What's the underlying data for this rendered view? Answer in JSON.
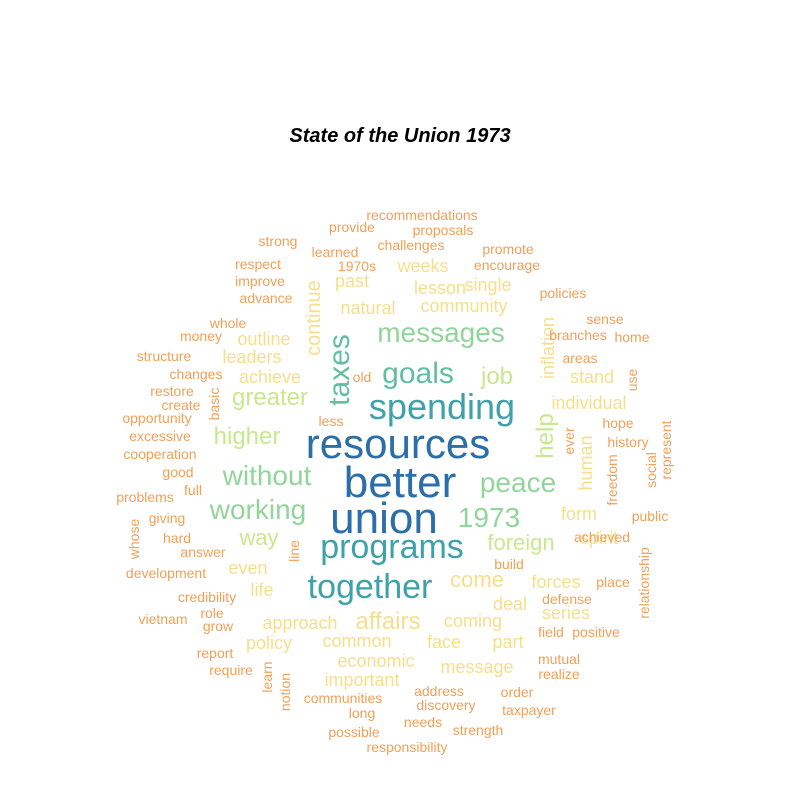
{
  "title": "State of the Union 1973",
  "palette": {
    "tier1": "#2b6ea8",
    "tier2": "#3ea2a8",
    "tier3": "#62bf9e",
    "tier4": "#92d59b",
    "tier5": "#c8e88d",
    "tier6": "#f6df8b",
    "tier7": "#f5c781",
    "tier8": "#f1a057"
  },
  "words": [
    {
      "text": "resources",
      "tier": "tier1"
    },
    {
      "text": "better",
      "tier": "tier1"
    },
    {
      "text": "union",
      "tier": "tier1"
    },
    {
      "text": "spending",
      "tier": "tier2"
    },
    {
      "text": "programs",
      "tier": "tier2"
    },
    {
      "text": "together",
      "tier": "tier2"
    },
    {
      "text": "taxes",
      "tier": "tier3"
    },
    {
      "text": "goals",
      "tier": "tier3"
    },
    {
      "text": "messages",
      "tier": "tier4"
    },
    {
      "text": "without",
      "tier": "tier4"
    },
    {
      "text": "working",
      "tier": "tier4"
    },
    {
      "text": "peace",
      "tier": "tier4"
    },
    {
      "text": "1973",
      "tier": "tier4"
    },
    {
      "text": "greater",
      "tier": "tier5"
    },
    {
      "text": "higher",
      "tier": "tier5"
    },
    {
      "text": "help",
      "tier": "tier5"
    },
    {
      "text": "job",
      "tier": "tier5"
    },
    {
      "text": "foreign",
      "tier": "tier5"
    },
    {
      "text": "way",
      "tier": "tier5"
    },
    {
      "text": "come",
      "tier": "tier6"
    },
    {
      "text": "affairs",
      "tier": "tier6"
    },
    {
      "text": "continue",
      "tier": "tier6"
    },
    {
      "text": "community",
      "tier": "tier6"
    },
    {
      "text": "natural",
      "tier": "tier6"
    },
    {
      "text": "single",
      "tier": "tier6"
    },
    {
      "text": "lesson",
      "tier": "tier6"
    },
    {
      "text": "past",
      "tier": "tier6"
    },
    {
      "text": "weeks",
      "tier": "tier6"
    },
    {
      "text": "outline",
      "tier": "tier6"
    },
    {
      "text": "leaders",
      "tier": "tier6"
    },
    {
      "text": "achieve",
      "tier": "tier6"
    },
    {
      "text": "inflation",
      "tier": "tier6"
    },
    {
      "text": "stand",
      "tier": "tier6"
    },
    {
      "text": "individual",
      "tier": "tier6"
    },
    {
      "text": "human",
      "tier": "tier6"
    },
    {
      "text": "form",
      "tier": "tier6"
    },
    {
      "text": "spirit",
      "tier": "tier6"
    },
    {
      "text": "even",
      "tier": "tier6"
    },
    {
      "text": "life",
      "tier": "tier6"
    },
    {
      "text": "forces",
      "tier": "tier6"
    },
    {
      "text": "deal",
      "tier": "tier6"
    },
    {
      "text": "series",
      "tier": "tier6"
    },
    {
      "text": "approach",
      "tier": "tier6"
    },
    {
      "text": "coming",
      "tier": "tier6"
    },
    {
      "text": "policy",
      "tier": "tier6"
    },
    {
      "text": "common",
      "tier": "tier6"
    },
    {
      "text": "face",
      "tier": "tier6"
    },
    {
      "text": "part",
      "tier": "tier6"
    },
    {
      "text": "economic",
      "tier": "tier6"
    },
    {
      "text": "message",
      "tier": "tier6"
    },
    {
      "text": "important",
      "tier": "tier6"
    },
    {
      "text": "recommendations",
      "tier": "tier8"
    },
    {
      "text": "provide",
      "tier": "tier8"
    },
    {
      "text": "proposals",
      "tier": "tier8"
    },
    {
      "text": "strong",
      "tier": "tier8"
    },
    {
      "text": "learned",
      "tier": "tier8"
    },
    {
      "text": "challenges",
      "tier": "tier8"
    },
    {
      "text": "promote",
      "tier": "tier8"
    },
    {
      "text": "respect",
      "tier": "tier8"
    },
    {
      "text": "1970s",
      "tier": "tier8"
    },
    {
      "text": "encourage",
      "tier": "tier8"
    },
    {
      "text": "improve",
      "tier": "tier8"
    },
    {
      "text": "policies",
      "tier": "tier8"
    },
    {
      "text": "advance",
      "tier": "tier8"
    },
    {
      "text": "sense",
      "tier": "tier8"
    },
    {
      "text": "branches",
      "tier": "tier8"
    },
    {
      "text": "home",
      "tier": "tier8"
    },
    {
      "text": "whole",
      "tier": "tier8"
    },
    {
      "text": "money",
      "tier": "tier8"
    },
    {
      "text": "structure",
      "tier": "tier8"
    },
    {
      "text": "areas",
      "tier": "tier8"
    },
    {
      "text": "changes",
      "tier": "tier8"
    },
    {
      "text": "old",
      "tier": "tier8"
    },
    {
      "text": "use",
      "tier": "tier8"
    },
    {
      "text": "restore",
      "tier": "tier8"
    },
    {
      "text": "create",
      "tier": "tier8"
    },
    {
      "text": "basic",
      "tier": "tier8"
    },
    {
      "text": "opportunity",
      "tier": "tier8"
    },
    {
      "text": "less",
      "tier": "tier8"
    },
    {
      "text": "hope",
      "tier": "tier8"
    },
    {
      "text": "represent",
      "tier": "tier8"
    },
    {
      "text": "excessive",
      "tier": "tier8"
    },
    {
      "text": "ever",
      "tier": "tier8"
    },
    {
      "text": "history",
      "tier": "tier8"
    },
    {
      "text": "cooperation",
      "tier": "tier8"
    },
    {
      "text": "good",
      "tier": "tier8"
    },
    {
      "text": "freedom",
      "tier": "tier8"
    },
    {
      "text": "social",
      "tier": "tier8"
    },
    {
      "text": "full",
      "tier": "tier8"
    },
    {
      "text": "problems",
      "tier": "tier8"
    },
    {
      "text": "giving",
      "tier": "tier8"
    },
    {
      "text": "public",
      "tier": "tier8"
    },
    {
      "text": "whose",
      "tier": "tier8"
    },
    {
      "text": "hard",
      "tier": "tier8"
    },
    {
      "text": "answer",
      "tier": "tier8"
    },
    {
      "text": "line",
      "tier": "tier8"
    },
    {
      "text": "achieved",
      "tier": "tier8"
    },
    {
      "text": "relationship",
      "tier": "tier8"
    },
    {
      "text": "development",
      "tier": "tier8"
    },
    {
      "text": "build",
      "tier": "tier8"
    },
    {
      "text": "place",
      "tier": "tier8"
    },
    {
      "text": "credibility",
      "tier": "tier8"
    },
    {
      "text": "defense",
      "tier": "tier8"
    },
    {
      "text": "vietnam",
      "tier": "tier8"
    },
    {
      "text": "role",
      "tier": "tier8"
    },
    {
      "text": "grow",
      "tier": "tier8"
    },
    {
      "text": "field",
      "tier": "tier8"
    },
    {
      "text": "positive",
      "tier": "tier8"
    },
    {
      "text": "report",
      "tier": "tier8"
    },
    {
      "text": "mutual",
      "tier": "tier8"
    },
    {
      "text": "require",
      "tier": "tier8"
    },
    {
      "text": "learn",
      "tier": "tier8"
    },
    {
      "text": "realize",
      "tier": "tier8"
    },
    {
      "text": "notion",
      "tier": "tier8"
    },
    {
      "text": "address",
      "tier": "tier8"
    },
    {
      "text": "order",
      "tier": "tier8"
    },
    {
      "text": "communities",
      "tier": "tier8"
    },
    {
      "text": "discovery",
      "tier": "tier8"
    },
    {
      "text": "long",
      "tier": "tier8"
    },
    {
      "text": "taxpayer",
      "tier": "tier8"
    },
    {
      "text": "needs",
      "tier": "tier8"
    },
    {
      "text": "strength",
      "tier": "tier8"
    },
    {
      "text": "possible",
      "tier": "tier8"
    },
    {
      "text": "responsibility",
      "tier": "tier8"
    }
  ]
}
